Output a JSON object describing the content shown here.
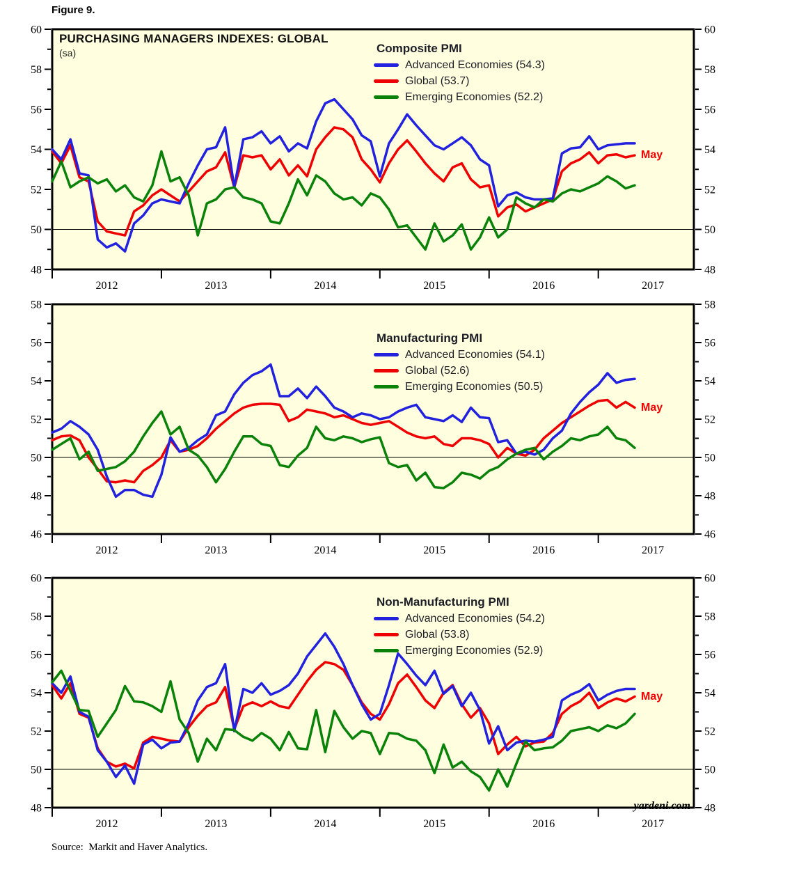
{
  "figure_label": "Figure 9.",
  "page": {
    "title": "PURCHASING MANAGERS INDEXES: GLOBAL",
    "subtitle": "(sa)",
    "source": "Source:  Markit and Haver Analytics.",
    "watermark": "yardeni.com"
  },
  "colors": {
    "advanced": "#2121de",
    "global": "#ee0000",
    "emerging": "#0a820a",
    "plot_bg": "#ffffe0",
    "annotation": "#ee0000"
  },
  "x_axis": {
    "year_labels": [
      "2012",
      "2013",
      "2014",
      "2015",
      "2016",
      "2017"
    ],
    "start": "2012-01",
    "end": "2017-05",
    "years_span": 5.875
  },
  "chart_data": [
    {
      "type": "line",
      "title": "Composite PMI",
      "ylim": [
        48,
        60
      ],
      "ytick_step": 2,
      "ref_line": 50,
      "x_monthly_start": "2012-01",
      "end_annotation": "May",
      "legend_position": "top-center",
      "series": [
        {
          "name": "Advanced Economies (54.3)",
          "color_key": "advanced",
          "values": [
            54.0,
            53.5,
            54.5,
            52.8,
            52.7,
            49.5,
            49.1,
            49.3,
            48.9,
            50.3,
            50.7,
            51.3,
            51.5,
            51.4,
            51.3,
            52.3,
            53.2,
            54.0,
            54.1,
            55.1,
            52.1,
            54.5,
            54.6,
            54.9,
            54.3,
            54.65,
            53.9,
            54.3,
            54.05,
            55.4,
            56.3,
            56.5,
            56.0,
            55.5,
            54.7,
            54.4,
            52.65,
            54.3,
            55.0,
            55.75,
            55.2,
            54.7,
            54.2,
            54.0,
            54.3,
            54.6,
            54.2,
            53.5,
            53.2,
            51.15,
            51.7,
            51.85,
            51.6,
            51.5,
            51.5,
            51.55,
            53.8,
            54.05,
            54.1,
            54.65,
            54.0,
            54.2,
            54.25,
            54.3,
            54.3
          ]
        },
        {
          "name": "Global (53.7)",
          "color_key": "global",
          "values": [
            53.9,
            53.3,
            54.2,
            52.6,
            52.4,
            50.4,
            49.9,
            49.8,
            49.7,
            50.9,
            51.2,
            51.7,
            52.0,
            51.7,
            51.4,
            51.9,
            52.4,
            52.9,
            53.1,
            53.85,
            52.1,
            53.7,
            53.6,
            53.7,
            53.0,
            53.5,
            52.7,
            53.2,
            52.65,
            54.0,
            54.6,
            55.1,
            55.0,
            54.6,
            53.5,
            53.0,
            52.35,
            53.3,
            54.0,
            54.45,
            53.9,
            53.3,
            52.8,
            52.4,
            53.1,
            53.3,
            52.5,
            52.1,
            52.2,
            50.65,
            51.1,
            51.25,
            50.9,
            51.1,
            51.3,
            51.5,
            52.9,
            53.3,
            53.5,
            53.85,
            53.3,
            53.7,
            53.75,
            53.6,
            53.7
          ]
        },
        {
          "name": "Emerging Economies (52.2)",
          "color_key": "emerging",
          "values": [
            52.4,
            53.4,
            52.1,
            52.4,
            52.6,
            52.3,
            52.5,
            51.9,
            52.2,
            51.6,
            51.4,
            52.2,
            53.9,
            52.4,
            52.6,
            51.7,
            49.7,
            51.3,
            51.5,
            52.0,
            52.1,
            51.6,
            51.5,
            51.3,
            50.4,
            50.3,
            51.3,
            52.5,
            51.7,
            52.7,
            52.4,
            51.8,
            51.5,
            51.6,
            51.2,
            51.8,
            51.6,
            51.0,
            50.1,
            50.2,
            49.6,
            49.0,
            50.3,
            49.4,
            49.7,
            50.25,
            49.0,
            49.6,
            50.6,
            49.6,
            50.0,
            51.6,
            51.3,
            51.1,
            51.5,
            51.4,
            51.8,
            52.0,
            51.9,
            52.1,
            52.3,
            52.65,
            52.4,
            52.05,
            52.2
          ]
        }
      ]
    },
    {
      "type": "line",
      "title": "Manufacturing PMI",
      "ylim": [
        46,
        58
      ],
      "ytick_step": 2,
      "ref_line": 50,
      "x_monthly_start": "2012-01",
      "end_annotation": "May",
      "legend_position": "top-center",
      "series": [
        {
          "name": "Advanced Economies (54.1)",
          "color_key": "advanced",
          "values": [
            51.3,
            51.5,
            51.9,
            51.6,
            51.2,
            50.4,
            49.0,
            47.95,
            48.3,
            48.3,
            48.05,
            47.95,
            49.1,
            51.05,
            50.3,
            50.5,
            50.9,
            51.2,
            52.2,
            52.4,
            53.3,
            53.9,
            54.3,
            54.5,
            54.85,
            53.2,
            53.2,
            53.6,
            53.1,
            53.7,
            53.2,
            52.6,
            52.4,
            52.1,
            52.3,
            52.2,
            52.0,
            52.1,
            52.4,
            52.6,
            52.75,
            52.1,
            52.0,
            51.9,
            52.2,
            51.85,
            52.6,
            52.1,
            52.05,
            50.8,
            50.9,
            50.2,
            50.3,
            50.15,
            50.4,
            51.0,
            51.4,
            52.3,
            52.9,
            53.4,
            53.8,
            54.4,
            53.9,
            54.05,
            54.1
          ]
        },
        {
          "name": "Global (52.6)",
          "color_key": "global",
          "values": [
            50.9,
            51.1,
            51.15,
            50.9,
            50.0,
            49.4,
            48.75,
            48.7,
            48.8,
            48.7,
            49.3,
            49.6,
            50.0,
            50.9,
            50.3,
            50.4,
            50.6,
            51.0,
            51.5,
            51.9,
            52.3,
            52.6,
            52.75,
            52.8,
            52.8,
            52.75,
            51.9,
            52.1,
            52.5,
            52.4,
            52.3,
            52.1,
            52.2,
            52.0,
            51.8,
            51.7,
            51.8,
            51.9,
            51.6,
            51.3,
            51.1,
            51.0,
            51.1,
            50.7,
            50.6,
            51.0,
            51.0,
            50.9,
            50.7,
            50.0,
            50.5,
            50.2,
            50.1,
            50.4,
            51.0,
            51.4,
            51.8,
            52.1,
            52.4,
            52.7,
            52.95,
            53.0,
            52.6,
            52.9,
            52.6
          ]
        },
        {
          "name": "Emerging Economies (50.5)",
          "color_key": "emerging",
          "values": [
            50.4,
            50.7,
            51.0,
            49.9,
            50.3,
            49.3,
            49.4,
            49.5,
            49.8,
            50.3,
            51.1,
            51.8,
            52.4,
            51.2,
            51.6,
            50.4,
            50.1,
            49.5,
            48.7,
            49.4,
            50.3,
            51.1,
            51.1,
            50.7,
            50.6,
            49.6,
            49.5,
            50.1,
            50.5,
            51.6,
            51.0,
            50.9,
            51.1,
            51.0,
            50.8,
            50.95,
            51.05,
            49.7,
            49.5,
            49.6,
            48.8,
            49.2,
            48.45,
            48.4,
            48.7,
            49.2,
            49.1,
            48.9,
            49.3,
            49.5,
            49.9,
            50.2,
            50.4,
            50.5,
            49.9,
            50.3,
            50.6,
            51.0,
            50.9,
            51.1,
            51.2,
            51.6,
            51.0,
            50.9,
            50.5
          ]
        }
      ]
    },
    {
      "type": "line",
      "title": "Non-Manufacturing PMI",
      "ylim": [
        48,
        60
      ],
      "ytick_step": 2,
      "ref_line": 50,
      "x_monthly_start": "2012-01",
      "end_annotation": "May",
      "legend_position": "top-center",
      "series": [
        {
          "name": "Advanced Economies (54.2)",
          "color_key": "advanced",
          "values": [
            54.5,
            54.0,
            54.85,
            53.0,
            52.75,
            51.0,
            50.4,
            49.6,
            50.2,
            49.25,
            51.3,
            51.55,
            51.1,
            51.4,
            51.45,
            52.4,
            53.6,
            54.3,
            54.5,
            55.5,
            52.0,
            54.2,
            54.0,
            54.5,
            53.9,
            54.1,
            54.4,
            55.0,
            55.9,
            56.5,
            57.1,
            56.4,
            55.5,
            54.4,
            53.4,
            52.6,
            52.9,
            54.4,
            56.05,
            55.5,
            54.9,
            54.4,
            55.15,
            53.95,
            54.35,
            53.3,
            54.0,
            53.1,
            51.35,
            52.25,
            51.0,
            51.4,
            51.5,
            51.45,
            51.55,
            51.7,
            53.6,
            53.9,
            54.1,
            54.45,
            53.6,
            53.9,
            54.1,
            54.2,
            54.2
          ]
        },
        {
          "name": "Global (53.8)",
          "color_key": "global",
          "values": [
            54.4,
            53.7,
            54.5,
            52.9,
            52.7,
            51.1,
            50.4,
            50.15,
            50.3,
            50.05,
            51.4,
            51.7,
            51.6,
            51.5,
            51.45,
            52.2,
            52.8,
            53.3,
            53.5,
            54.3,
            52.1,
            53.3,
            53.5,
            53.3,
            53.55,
            53.3,
            53.2,
            53.9,
            54.6,
            55.2,
            55.6,
            55.5,
            55.2,
            54.4,
            53.5,
            52.9,
            52.6,
            53.4,
            54.5,
            54.95,
            54.3,
            53.6,
            53.2,
            54.0,
            54.4,
            53.4,
            52.7,
            53.2,
            52.4,
            50.8,
            51.3,
            51.7,
            51.2,
            51.4,
            51.45,
            51.9,
            52.9,
            53.3,
            53.55,
            54.0,
            53.2,
            53.5,
            53.7,
            53.55,
            53.8
          ]
        },
        {
          "name": "Emerging Economies (52.9)",
          "color_key": "emerging",
          "values": [
            54.55,
            55.15,
            54.1,
            53.1,
            53.05,
            51.7,
            52.4,
            53.1,
            54.35,
            53.55,
            53.5,
            53.3,
            53.0,
            54.6,
            52.6,
            51.9,
            50.4,
            51.6,
            51.0,
            52.1,
            52.05,
            51.7,
            51.5,
            51.9,
            51.6,
            51.0,
            51.95,
            51.1,
            51.05,
            53.1,
            50.9,
            53.05,
            52.2,
            51.6,
            52.0,
            51.9,
            50.8,
            51.9,
            51.85,
            51.6,
            51.5,
            51.0,
            49.8,
            51.3,
            50.1,
            50.4,
            49.9,
            49.6,
            48.9,
            50.0,
            49.1,
            50.3,
            51.45,
            51.0,
            51.1,
            51.15,
            51.5,
            52.0,
            52.1,
            52.2,
            52.0,
            52.3,
            52.15,
            52.4,
            52.9
          ]
        }
      ]
    }
  ]
}
